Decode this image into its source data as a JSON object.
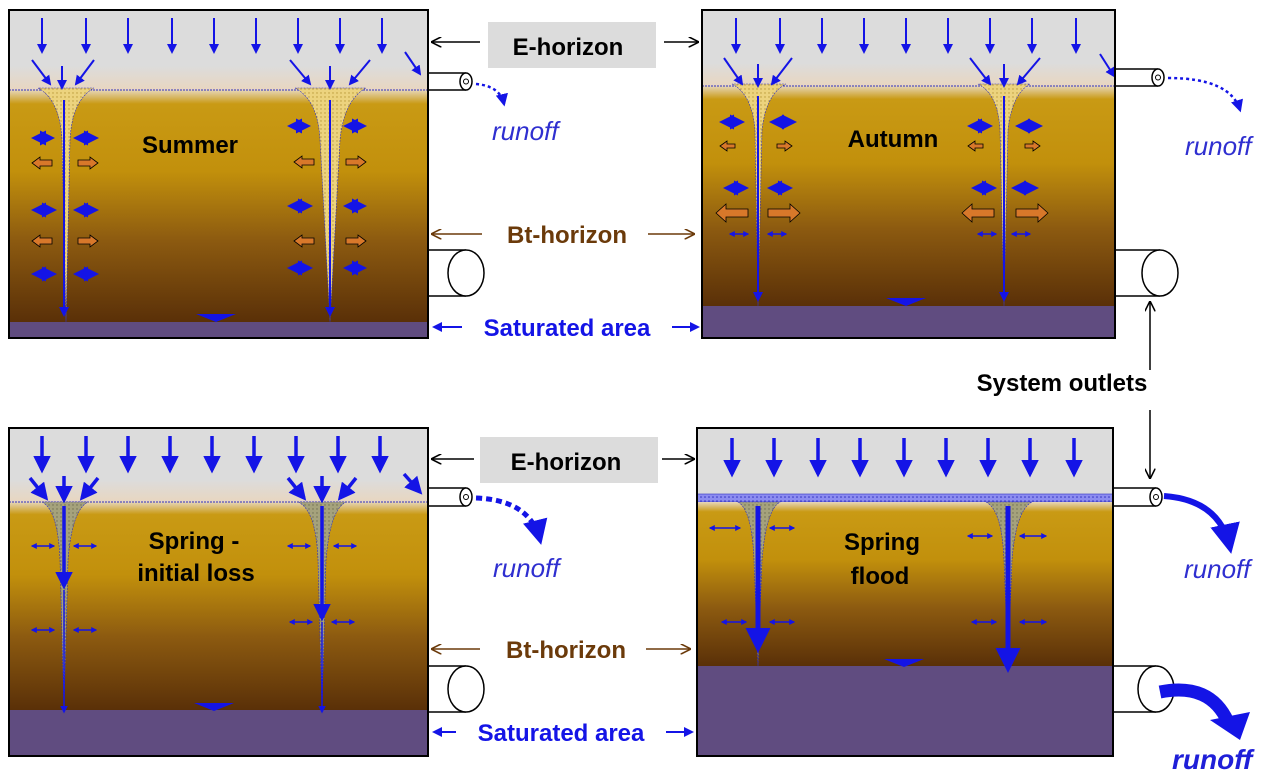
{
  "labels": {
    "e_horizon": "E-horizon",
    "bt_horizon": "Bt-horizon",
    "saturated_area": "Saturated area",
    "system_outlets": "System outlets",
    "runoff": "runoff"
  },
  "panels": {
    "summer": "Summer",
    "autumn": "Autumn",
    "spring_initial_line1": "Spring -",
    "spring_initial_line2": "initial loss",
    "spring_flood_line1": "Spring",
    "spring_flood_line2": "flood"
  },
  "colors": {
    "e_horizon": "#dcdcdc",
    "soil_top": "#c8960a",
    "soil_bottom": "#5c3208",
    "saturated": "#604c80",
    "water_arrow": "#1414e6",
    "clay_arrow": "#d2691e",
    "crack_summer": "#e8cf78",
    "crack_spring": "#9a9a78"
  }
}
